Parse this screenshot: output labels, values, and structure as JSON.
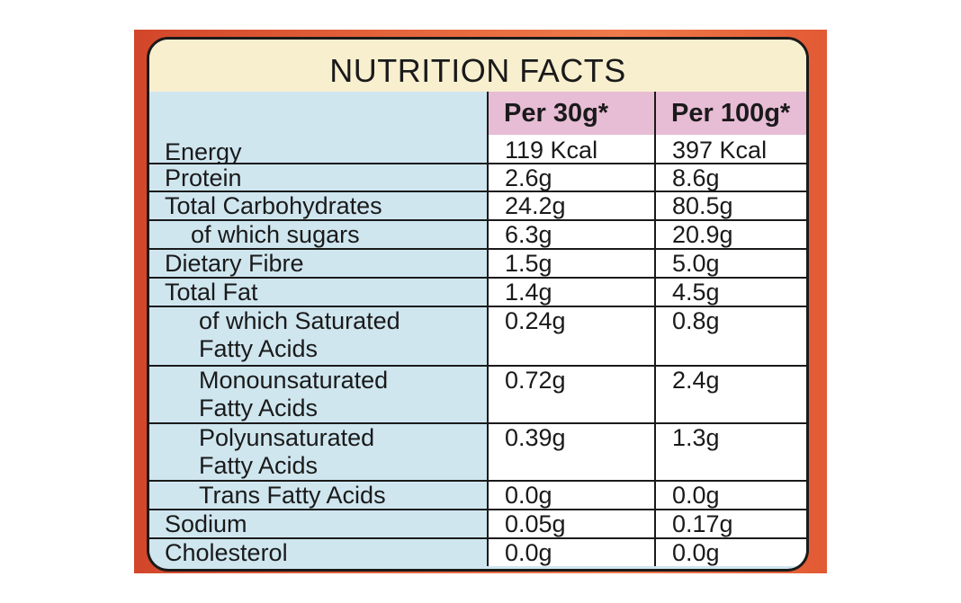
{
  "title": "NUTRITION FACTS",
  "columns": {
    "per_30g": "Per 30g*",
    "per_100g": "Per 100g*"
  },
  "rows": [
    {
      "name": "Energy",
      "per_30g": "119 Kcal",
      "per_100g": "397 Kcal"
    },
    {
      "name": "Protein",
      "per_30g": "2.6g",
      "per_100g": "8.6g"
    },
    {
      "name": "Total Carbohydrates",
      "per_30g": "24.2g",
      "per_100g": "80.5g"
    },
    {
      "name": "of which sugars",
      "per_30g": "6.3g",
      "per_100g": "20.9g"
    },
    {
      "name": "Dietary Fibre",
      "per_30g": "1.5g",
      "per_100g": "5.0g"
    },
    {
      "name": "Total Fat",
      "per_30g": "1.4g",
      "per_100g": "4.5g"
    },
    {
      "name": "of which Saturated Fatty Acids",
      "per_30g": "0.24g",
      "per_100g": "0.8g"
    },
    {
      "name": "Monounsaturated Fatty Acids",
      "per_30g": "0.72g",
      "per_100g": "2.4g"
    },
    {
      "name": "Polyunsaturated Fatty Acids",
      "per_30g": "0.39g",
      "per_100g": "1.3g"
    },
    {
      "name": "Trans Fatty Acids",
      "per_30g": "0.0g",
      "per_100g": "0.0g"
    },
    {
      "name": "Sodium",
      "per_30g": "0.05g",
      "per_100g": "0.17g"
    },
    {
      "name": "Cholesterol",
      "per_30g": "0.0g",
      "per_100g": "0.0g"
    }
  ],
  "colors": {
    "label_name_column": "#cfe6ef",
    "header_band": "#f8efcf",
    "column_header": "#e7bcd5",
    "packaging": "#e5663c"
  }
}
